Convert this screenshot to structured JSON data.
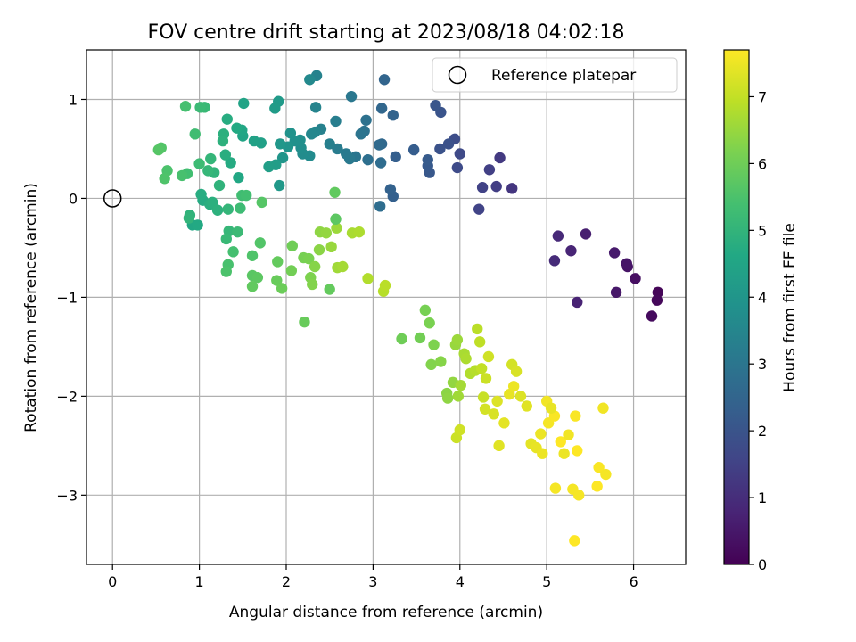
{
  "chart_data": {
    "type": "scatter",
    "title": "FOV centre drift starting at 2023/08/18 04:02:18",
    "xlabel": "Angular distance from reference (arcmin)",
    "ylabel": "Rotation from reference (arcmin)",
    "xlim": [
      -0.3,
      6.6
    ],
    "ylim": [
      -3.7,
      1.5
    ],
    "xticks": [
      0,
      1,
      2,
      3,
      4,
      5,
      6
    ],
    "xtick_labels": [
      "0",
      "1",
      "2",
      "3",
      "4",
      "5",
      "6"
    ],
    "yticks": [
      1,
      0,
      -1,
      -2,
      -3
    ],
    "ytick_labels": [
      "1",
      "0",
      "−1",
      "−2",
      "−3"
    ],
    "grid": true,
    "legend_position": "top-right",
    "colormap": "viridis",
    "reference": {
      "name": "Reference platepar",
      "x": 0,
      "y": 0
    },
    "colorbar": {
      "label": "Hours from first FF file",
      "range": [
        0,
        7.7
      ],
      "ticks": [
        0,
        1,
        2,
        3,
        4,
        5,
        6,
        7
      ],
      "tick_labels": [
        "0",
        "1",
        "2",
        "3",
        "4",
        "5",
        "6",
        "7"
      ]
    },
    "points": [
      [
        6.28,
        -0.95,
        0.1
      ],
      [
        6.27,
        -1.03,
        0.15
      ],
      [
        6.21,
        -1.19,
        0.2
      ],
      [
        6.02,
        -0.81,
        0.3
      ],
      [
        5.93,
        -0.69,
        0.4
      ],
      [
        5.92,
        -0.66,
        0.45
      ],
      [
        5.8,
        -0.95,
        0.5
      ],
      [
        5.78,
        -0.55,
        0.55
      ],
      [
        5.45,
        -0.36,
        0.65
      ],
      [
        5.35,
        -1.05,
        0.75
      ],
      [
        5.28,
        -0.53,
        0.8
      ],
      [
        5.13,
        -0.38,
        0.9
      ],
      [
        5.09,
        -0.63,
        0.95
      ],
      [
        4.6,
        0.1,
        1.2
      ],
      [
        4.46,
        0.41,
        1.3
      ],
      [
        4.42,
        0.12,
        1.4
      ],
      [
        4.34,
        0.29,
        1.45
      ],
      [
        4.26,
        0.11,
        1.5
      ],
      [
        4.22,
        -0.11,
        1.55
      ],
      [
        4.0,
        0.45,
        1.7
      ],
      [
        3.97,
        0.31,
        1.75
      ],
      [
        3.94,
        0.6,
        1.8
      ],
      [
        3.87,
        0.55,
        1.9
      ],
      [
        3.77,
        0.5,
        1.95
      ],
      [
        3.78,
        0.87,
        2.0
      ],
      [
        3.72,
        0.94,
        2.05
      ],
      [
        3.65,
        0.26,
        2.1
      ],
      [
        3.63,
        0.33,
        2.15
      ],
      [
        3.63,
        0.39,
        2.2
      ],
      [
        3.47,
        0.49,
        2.25
      ],
      [
        3.26,
        0.42,
        2.3
      ],
      [
        3.23,
        0.02,
        2.35
      ],
      [
        3.2,
        0.09,
        2.4
      ],
      [
        3.23,
        0.84,
        2.45
      ],
      [
        3.13,
        1.2,
        2.5
      ],
      [
        3.1,
        0.91,
        2.55
      ],
      [
        3.1,
        0.55,
        2.6
      ],
      [
        3.07,
        0.54,
        2.65
      ],
      [
        3.09,
        0.36,
        2.7
      ],
      [
        3.08,
        -0.08,
        2.75
      ],
      [
        2.94,
        0.39,
        2.8
      ],
      [
        2.92,
        0.79,
        2.85
      ],
      [
        2.9,
        0.68,
        2.9
      ],
      [
        2.86,
        0.65,
        2.95
      ],
      [
        2.8,
        0.42,
        3.0
      ],
      [
        2.75,
        1.03,
        3.05
      ],
      [
        2.73,
        0.4,
        3.1
      ],
      [
        2.69,
        0.45,
        3.15
      ],
      [
        2.59,
        0.5,
        3.2
      ],
      [
        2.57,
        0.78,
        3.25
      ],
      [
        2.5,
        0.55,
        3.3
      ],
      [
        2.4,
        0.7,
        3.35
      ],
      [
        2.35,
        1.24,
        3.4
      ],
      [
        2.34,
        0.92,
        3.45
      ],
      [
        2.33,
        0.67,
        3.5
      ],
      [
        2.29,
        0.65,
        3.55
      ],
      [
        2.27,
        1.2,
        3.6
      ],
      [
        2.27,
        0.43,
        3.65
      ],
      [
        2.19,
        0.45,
        3.7
      ],
      [
        2.17,
        0.51,
        3.75
      ],
      [
        2.16,
        0.59,
        3.8
      ],
      [
        2.1,
        0.58,
        3.85
      ],
      [
        2.05,
        0.66,
        3.9
      ],
      [
        2.02,
        0.52,
        3.95
      ],
      [
        1.96,
        0.41,
        4.0
      ],
      [
        1.93,
        0.55,
        4.05
      ],
      [
        1.92,
        0.13,
        4.1
      ],
      [
        1.91,
        0.98,
        4.15
      ],
      [
        1.87,
        0.91,
        4.2
      ],
      [
        1.88,
        0.34,
        4.25
      ],
      [
        1.8,
        0.32,
        4.3
      ],
      [
        1.71,
        0.56,
        4.35
      ],
      [
        1.63,
        0.58,
        4.4
      ],
      [
        1.51,
        0.96,
        4.45
      ],
      [
        1.5,
        0.63,
        4.5
      ],
      [
        1.49,
        0.69,
        4.55
      ],
      [
        1.45,
        0.21,
        4.6
      ],
      [
        1.43,
        0.71,
        4.65
      ],
      [
        1.36,
        0.36,
        4.7
      ],
      [
        1.32,
        0.8,
        4.75
      ],
      [
        1.3,
        0.44,
        4.8
      ],
      [
        1.28,
        0.65,
        4.85
      ],
      [
        1.27,
        0.58,
        4.9
      ],
      [
        1.23,
        0.13,
        4.95
      ],
      [
        1.17,
        0.26,
        5.0
      ],
      [
        1.13,
        0.4,
        5.05
      ],
      [
        1.1,
        0.28,
        5.1
      ],
      [
        1.06,
        0.92,
        5.15
      ],
      [
        1.01,
        0.92,
        5.2
      ],
      [
        1.0,
        0.35,
        5.25
      ],
      [
        0.95,
        0.65,
        5.3
      ],
      [
        0.86,
        0.25,
        5.35
      ],
      [
        0.84,
        0.93,
        5.4
      ],
      [
        0.8,
        0.23,
        5.45
      ],
      [
        0.63,
        0.28,
        5.5
      ],
      [
        0.6,
        0.2,
        5.55
      ],
      [
        0.56,
        0.51,
        5.6
      ],
      [
        0.53,
        0.49,
        5.65
      ],
      [
        0.92,
        -0.27,
        4.6
      ],
      [
        0.98,
        -0.27,
        4.65
      ],
      [
        1.04,
        -0.02,
        4.7
      ],
      [
        1.02,
        0.04,
        4.75
      ],
      [
        1.12,
        -0.06,
        4.8
      ],
      [
        1.15,
        -0.04,
        4.85
      ],
      [
        1.21,
        -0.12,
        4.9
      ],
      [
        0.89,
        -0.17,
        4.95
      ],
      [
        0.88,
        -0.2,
        5.0
      ],
      [
        1.33,
        -0.11,
        5.05
      ],
      [
        1.34,
        -0.33,
        5.1
      ],
      [
        1.31,
        -0.41,
        5.15
      ],
      [
        1.44,
        -0.34,
        5.2
      ],
      [
        1.47,
        -0.1,
        5.25
      ],
      [
        1.49,
        0.03,
        5.3
      ],
      [
        1.54,
        0.03,
        5.35
      ],
      [
        1.39,
        -0.54,
        5.4
      ],
      [
        1.33,
        -0.67,
        5.45
      ],
      [
        1.31,
        -0.74,
        5.5
      ],
      [
        1.61,
        -0.58,
        5.55
      ],
      [
        1.7,
        -0.45,
        5.6
      ],
      [
        1.72,
        -0.04,
        5.65
      ],
      [
        1.61,
        -0.78,
        5.7
      ],
      [
        1.67,
        -0.8,
        5.75
      ],
      [
        1.61,
        -0.89,
        5.8
      ],
      [
        1.9,
        -0.64,
        5.85
      ],
      [
        1.89,
        -0.83,
        5.9
      ],
      [
        1.95,
        -0.91,
        5.95
      ],
      [
        2.07,
        -0.48,
        6.0
      ],
      [
        2.06,
        -0.73,
        6.05
      ],
      [
        2.2,
        -0.6,
        6.1
      ],
      [
        2.26,
        -0.61,
        6.15
      ],
      [
        2.28,
        -0.8,
        6.2
      ],
      [
        2.3,
        -0.87,
        6.25
      ],
      [
        2.33,
        -0.69,
        6.3
      ],
      [
        2.38,
        -0.52,
        6.35
      ],
      [
        2.39,
        -0.34,
        6.4
      ],
      [
        2.46,
        -0.35,
        6.45
      ],
      [
        2.52,
        -0.49,
        6.5
      ],
      [
        2.58,
        -0.3,
        6.55
      ],
      [
        2.59,
        -0.7,
        6.6
      ],
      [
        2.65,
        -0.69,
        6.65
      ],
      [
        2.76,
        -0.35,
        6.7
      ],
      [
        2.84,
        -0.34,
        6.75
      ],
      [
        2.94,
        -0.81,
        6.8
      ],
      [
        3.12,
        -0.94,
        6.85
      ],
      [
        3.14,
        -0.88,
        6.9
      ],
      [
        2.57,
        -0.21,
        5.75
      ],
      [
        2.56,
        0.06,
        5.8
      ],
      [
        2.5,
        -0.92,
        5.85
      ],
      [
        2.21,
        -1.25,
        5.9
      ],
      [
        3.33,
        -1.42,
        6.0
      ],
      [
        3.54,
        -1.41,
        6.05
      ],
      [
        3.6,
        -1.13,
        6.1
      ],
      [
        3.65,
        -1.26,
        6.15
      ],
      [
        3.7,
        -1.48,
        6.2
      ],
      [
        3.67,
        -1.68,
        6.25
      ],
      [
        3.78,
        -1.65,
        6.3
      ],
      [
        3.85,
        -1.97,
        6.35
      ],
      [
        3.86,
        -2.02,
        6.4
      ],
      [
        3.92,
        -1.86,
        6.45
      ],
      [
        3.95,
        -1.48,
        6.5
      ],
      [
        3.97,
        -1.43,
        6.55
      ],
      [
        3.98,
        -2.0,
        6.6
      ],
      [
        4.01,
        -1.89,
        6.65
      ],
      [
        4.05,
        -1.57,
        6.7
      ],
      [
        4.07,
        -1.62,
        6.75
      ],
      [
        4.12,
        -1.77,
        6.8
      ],
      [
        4.18,
        -1.74,
        6.85
      ],
      [
        4.2,
        -1.32,
        6.9
      ],
      [
        4.23,
        -1.45,
        6.95
      ],
      [
        4.25,
        -1.72,
        7.0
      ],
      [
        4.27,
        -2.01,
        7.05
      ],
      [
        4.3,
        -1.82,
        7.1
      ],
      [
        4.33,
        -1.6,
        7.15
      ],
      [
        4.29,
        -2.13,
        7.2
      ],
      [
        4.39,
        -2.18,
        7.25
      ],
      [
        4.43,
        -2.05,
        7.3
      ],
      [
        4.45,
        -2.5,
        7.35
      ],
      [
        4.51,
        -2.27,
        7.4
      ],
      [
        4.57,
        -1.98,
        7.45
      ],
      [
        4.62,
        -1.9,
        7.5
      ],
      [
        3.96,
        -2.42,
        7.1
      ],
      [
        4.0,
        -2.34,
        7.15
      ],
      [
        4.6,
        -1.68,
        7.2
      ],
      [
        4.65,
        -1.75,
        7.25
      ],
      [
        4.7,
        -2.0,
        7.3
      ],
      [
        4.77,
        -2.1,
        7.35
      ],
      [
        4.82,
        -2.48,
        7.4
      ],
      [
        4.88,
        -2.52,
        7.45
      ],
      [
        4.93,
        -2.38,
        7.5
      ],
      [
        5.0,
        -2.05,
        7.55
      ],
      [
        5.02,
        -2.27,
        7.6
      ],
      [
        5.09,
        -2.2,
        7.65
      ],
      [
        5.16,
        -2.46,
        7.7
      ],
      [
        5.2,
        -2.58,
        7.5
      ],
      [
        5.25,
        -2.39,
        7.55
      ],
      [
        5.3,
        -2.94,
        7.6
      ],
      [
        5.33,
        -2.2,
        7.65
      ],
      [
        5.35,
        -2.55,
        7.7
      ],
      [
        5.37,
        -3.0,
        7.6
      ],
      [
        5.6,
        -2.72,
        7.65
      ],
      [
        5.58,
        -2.91,
        7.7
      ],
      [
        5.68,
        -2.79,
        7.6
      ],
      [
        5.65,
        -2.12,
        7.55
      ],
      [
        5.32,
        -3.46,
        7.7
      ],
      [
        5.1,
        -2.93,
        7.6
      ],
      [
        4.95,
        -2.58,
        7.5
      ],
      [
        5.05,
        -2.12,
        7.45
      ]
    ]
  }
}
